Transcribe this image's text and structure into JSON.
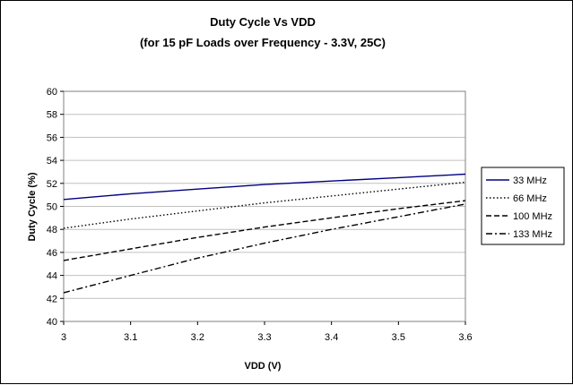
{
  "chart_data": {
    "type": "line",
    "title": "Duty Cycle Vs VDD",
    "subtitle": "(for 15 pF Loads over Frequency - 3.3V, 25C)",
    "xlabel": "VDD (V)",
    "ylabel": "Duty Cycle (%)",
    "xlim": [
      3,
      3.6
    ],
    "ylim": [
      40,
      60
    ],
    "x_ticks": [
      "3",
      "3.1",
      "3.2",
      "3.3",
      "3.4",
      "3.5",
      "3.6"
    ],
    "y_ticks": [
      "40",
      "42",
      "44",
      "46",
      "48",
      "50",
      "52",
      "54",
      "56",
      "58",
      "60"
    ],
    "grid": "horizontal",
    "legend_position": "right",
    "x": [
      3.0,
      3.1,
      3.2,
      3.3,
      3.4,
      3.5,
      3.6
    ],
    "series": [
      {
        "name": "33 MHz",
        "style": "solid",
        "color": "#000080",
        "values": [
          50.6,
          51.1,
          51.5,
          51.9,
          52.2,
          52.5,
          52.8
        ]
      },
      {
        "name": "66 MHz",
        "style": "dotted",
        "color": "#000000",
        "values": [
          48.1,
          48.9,
          49.6,
          50.3,
          50.9,
          51.5,
          52.1
        ]
      },
      {
        "name": "100 MHz",
        "style": "dashed",
        "color": "#000000",
        "values": [
          45.3,
          46.3,
          47.3,
          48.2,
          49.0,
          49.8,
          50.5
        ]
      },
      {
        "name": "133 MHz",
        "style": "dash-dot",
        "color": "#000000",
        "values": [
          42.5,
          44.0,
          45.5,
          46.8,
          48.0,
          49.1,
          50.2
        ]
      }
    ]
  }
}
